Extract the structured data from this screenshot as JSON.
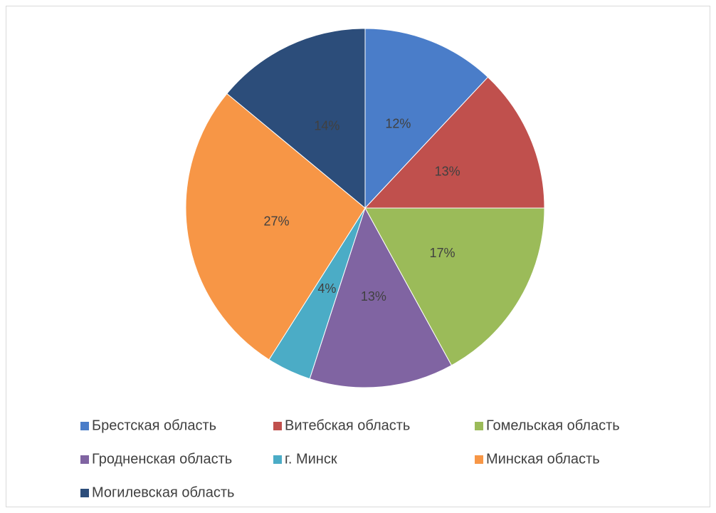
{
  "chart_data": {
    "type": "pie",
    "categories": [
      "Брестская область",
      "Витебская область",
      "Гомельская область",
      "Гродненская область",
      "г. Минск",
      "Минская область",
      "Могилевская область"
    ],
    "values": [
      12,
      13,
      17,
      13,
      4,
      27,
      14
    ],
    "value_labels": [
      "12%",
      "13%",
      "17%",
      "13%",
      "4%",
      "27%",
      "14%"
    ],
    "colors": [
      "#4a7dc9",
      "#c0504d",
      "#9bbb59",
      "#8064a2",
      "#4bacc6",
      "#f79646",
      "#2c4d7a"
    ],
    "legend": "bottom"
  }
}
